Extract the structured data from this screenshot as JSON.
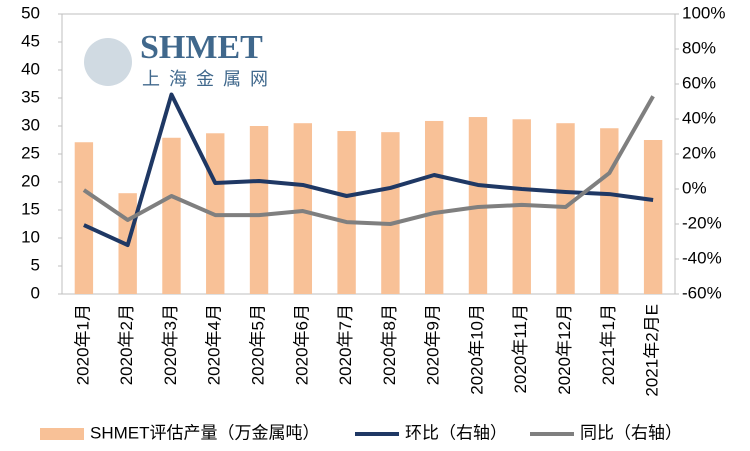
{
  "chart_data": {
    "type": "bar-line",
    "categories": [
      "2020年1月",
      "2020年2月",
      "2020年3月",
      "2020年4月",
      "2020年5月",
      "2020年6月",
      "2020年7月",
      "2020年8月",
      "2020年9月",
      "2020年10月",
      "2020年11月",
      "2020年12月",
      "2021年1月",
      "2021年2月E"
    ],
    "series": [
      {
        "name": "SHMET评估产量（万金属吨）",
        "type": "bar",
        "color": "#f8c197",
        "values": [
          27.1,
          18.0,
          27.9,
          28.7,
          30.0,
          30.5,
          29.1,
          28.9,
          30.9,
          31.6,
          31.2,
          30.5,
          29.6,
          27.5
        ]
      },
      {
        "name": "环比（右轴）",
        "type": "line",
        "axis": "y2",
        "color": "#1f3864",
        "values": [
          -20.6,
          -32,
          54,
          3.4,
          4.6,
          2.3,
          -4,
          0.6,
          8,
          2.3,
          0,
          -1.7,
          -2.9,
          -6.3
        ]
      },
      {
        "name": "同比（右轴）",
        "type": "line",
        "axis": "y2",
        "color": "#7f7f7f",
        "values": [
          -0.6,
          -17.7,
          -4,
          -14.9,
          -14.9,
          -12.6,
          -18.9,
          -20,
          -13.7,
          -10.3,
          -9.1,
          -10.3,
          9.1,
          53
        ]
      }
    ],
    "ylim": [
      0,
      50
    ],
    "yticks": [
      0,
      5,
      10,
      15,
      20,
      25,
      30,
      35,
      40,
      45,
      50
    ],
    "y2lim": [
      -60,
      100
    ],
    "y2ticks": [
      {
        "value": -60,
        "label": "-60%"
      },
      {
        "value": -40,
        "label": "-40%"
      },
      {
        "value": -20,
        "label": "-20%"
      },
      {
        "value": 0,
        "label": "0%"
      },
      {
        "value": 20,
        "label": "20%"
      },
      {
        "value": 40,
        "label": "40%"
      },
      {
        "value": 60,
        "label": "60%"
      },
      {
        "value": 80,
        "label": "80%"
      },
      {
        "value": 100,
        "label": "100%"
      }
    ],
    "annotations": [
      "SHMET",
      "上海金属网"
    ],
    "grid": false,
    "legend": "bottom"
  }
}
